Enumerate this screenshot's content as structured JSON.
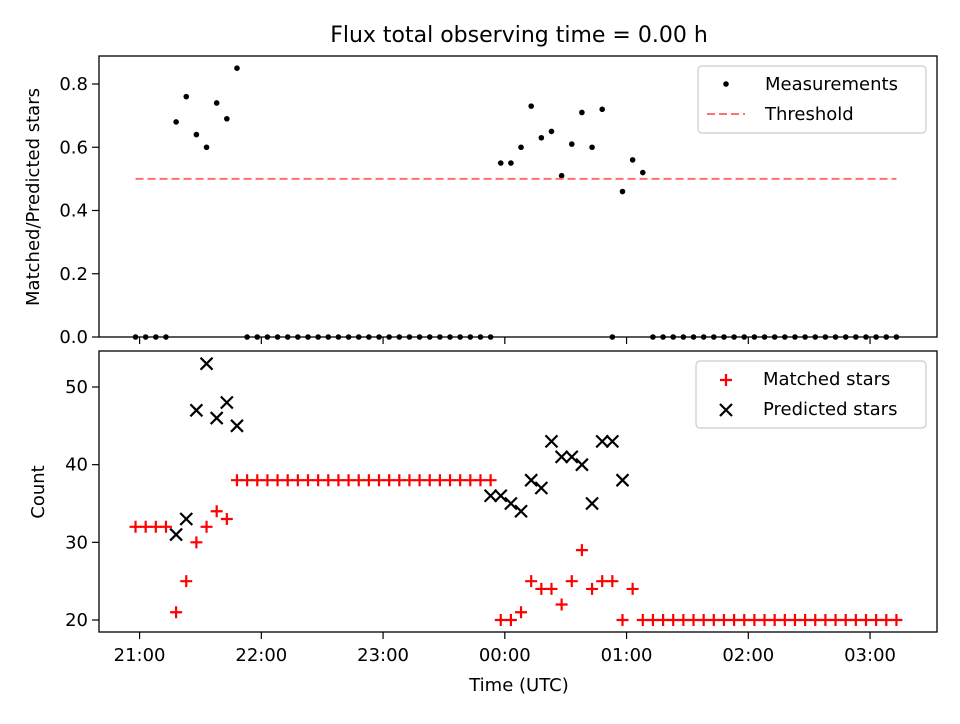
{
  "chart_data": [
    {
      "type": "scatter",
      "title": "Flux total observing time = 0.00 h",
      "xlabel": "",
      "ylabel": "Matched/Predicted stars",
      "xlim": [
        "20:40",
        "03:33"
      ],
      "ylim": [
        0,
        0.88
      ],
      "yticks": [
        "0.0",
        "0.2",
        "0.4",
        "0.6",
        "0.8"
      ],
      "legend_position": "top-right",
      "series": [
        {
          "name": "Measurements",
          "color": "#000000",
          "marker": "dot",
          "x": [
            "20:58",
            "21:03",
            "21:08",
            "21:13",
            "21:18",
            "21:23",
            "21:28",
            "21:33",
            "21:38",
            "21:43",
            "21:48",
            "21:53",
            "21:58",
            "22:03",
            "22:08",
            "22:13",
            "22:18",
            "22:23",
            "22:28",
            "22:33",
            "22:38",
            "22:43",
            "22:48",
            "22:53",
            "22:58",
            "23:03",
            "23:08",
            "23:13",
            "23:18",
            "23:23",
            "23:28",
            "23:33",
            "23:38",
            "23:43",
            "23:48",
            "23:53",
            "23:58",
            "00:03",
            "00:08",
            "00:13",
            "00:18",
            "00:23",
            "00:28",
            "00:33",
            "00:38",
            "00:43",
            "00:48",
            "00:53",
            "00:58",
            "01:03",
            "01:08",
            "01:13",
            "01:18",
            "01:23",
            "01:28",
            "01:33",
            "01:38",
            "01:43",
            "01:48",
            "01:53",
            "01:58",
            "02:03",
            "02:08",
            "02:13",
            "02:18",
            "02:23",
            "02:28",
            "02:33",
            "02:38",
            "02:43",
            "02:48",
            "02:53",
            "02:58",
            "03:03",
            "03:08",
            "03:13"
          ],
          "y": [
            0,
            0,
            0,
            0,
            0.68,
            0.76,
            0.64,
            0.6,
            0.74,
            0.69,
            0.85,
            0,
            0,
            0,
            0,
            0,
            0,
            0,
            0,
            0,
            0,
            0,
            0,
            0,
            0,
            0,
            0,
            0,
            0,
            0,
            0,
            0,
            0,
            0,
            0,
            0,
            0.55,
            0.55,
            0.6,
            0.73,
            0.63,
            0.65,
            0.51,
            0.61,
            0.71,
            0.6,
            0.72,
            0,
            0.46,
            0.56,
            0.52,
            0,
            0,
            0,
            0,
            0,
            0,
            0,
            0,
            0,
            0,
            0,
            0,
            0,
            0,
            0,
            0,
            0,
            0,
            0,
            0,
            0,
            0,
            0,
            0,
            0
          ]
        },
        {
          "name": "Threshold",
          "color": "#ff7070",
          "style": "dashed",
          "x": [
            "20:58",
            "03:13"
          ],
          "y": [
            0.5,
            0.5
          ]
        }
      ]
    },
    {
      "type": "scatter",
      "title": "",
      "xlabel": "Time (UTC)",
      "ylabel": "Count",
      "xlim": [
        "20:40",
        "03:33"
      ],
      "ylim": [
        18.5,
        54.5
      ],
      "xticks": [
        "21:00",
        "22:00",
        "23:00",
        "00:00",
        "01:00",
        "02:00",
        "03:00"
      ],
      "yticks": [
        "20",
        "30",
        "40",
        "50"
      ],
      "legend_position": "top-right",
      "series": [
        {
          "name": "Matched stars",
          "color": "#ff0000",
          "marker": "plus",
          "x": [
            "20:58",
            "21:03",
            "21:08",
            "21:13",
            "21:18",
            "21:23",
            "21:28",
            "21:33",
            "21:38",
            "21:43",
            "21:48",
            "21:53",
            "21:58",
            "22:03",
            "22:08",
            "22:13",
            "22:18",
            "22:23",
            "22:28",
            "22:33",
            "22:38",
            "22:43",
            "22:48",
            "22:53",
            "22:58",
            "23:03",
            "23:08",
            "23:13",
            "23:18",
            "23:23",
            "23:28",
            "23:33",
            "23:38",
            "23:43",
            "23:48",
            "23:53",
            "23:58",
            "00:03",
            "00:08",
            "00:13",
            "00:18",
            "00:23",
            "00:28",
            "00:33",
            "00:38",
            "00:43",
            "00:48",
            "00:53",
            "00:58",
            "01:03",
            "01:08",
            "01:13",
            "01:18",
            "01:23",
            "01:28",
            "01:33",
            "01:38",
            "01:43",
            "01:48",
            "01:53",
            "01:58",
            "02:03",
            "02:08",
            "02:13",
            "02:18",
            "02:23",
            "02:28",
            "02:33",
            "02:38",
            "02:43",
            "02:48",
            "02:53",
            "02:58",
            "03:03",
            "03:08",
            "03:13"
          ],
          "y": [
            32,
            32,
            32,
            32,
            21,
            25,
            30,
            32,
            34,
            33,
            38,
            38,
            38,
            38,
            38,
            38,
            38,
            38,
            38,
            38,
            38,
            38,
            38,
            38,
            38,
            38,
            38,
            38,
            38,
            38,
            38,
            38,
            38,
            38,
            38,
            38,
            20,
            20,
            21,
            25,
            24,
            24,
            22,
            25,
            29,
            24,
            25,
            25,
            20,
            24,
            20,
            20,
            20,
            20,
            20,
            20,
            20,
            20,
            20,
            20,
            20,
            20,
            20,
            20,
            20,
            20,
            20,
            20,
            20,
            20,
            20,
            20,
            20,
            20,
            20,
            20
          ]
        },
        {
          "name": "Predicted stars",
          "color": "#000000",
          "marker": "x",
          "x": [
            "21:18",
            "21:23",
            "21:28",
            "21:33",
            "21:38",
            "21:43",
            "21:48",
            "23:53",
            "23:58",
            "00:03",
            "00:08",
            "00:13",
            "00:18",
            "00:23",
            "00:28",
            "00:33",
            "00:38",
            "00:43",
            "00:48",
            "00:53",
            "00:58"
          ],
          "y": [
            31,
            33,
            47,
            53,
            46,
            48,
            45,
            36,
            36,
            35,
            34,
            38,
            37,
            43,
            41,
            41,
            40,
            35,
            43,
            43,
            38
          ]
        }
      ]
    }
  ]
}
